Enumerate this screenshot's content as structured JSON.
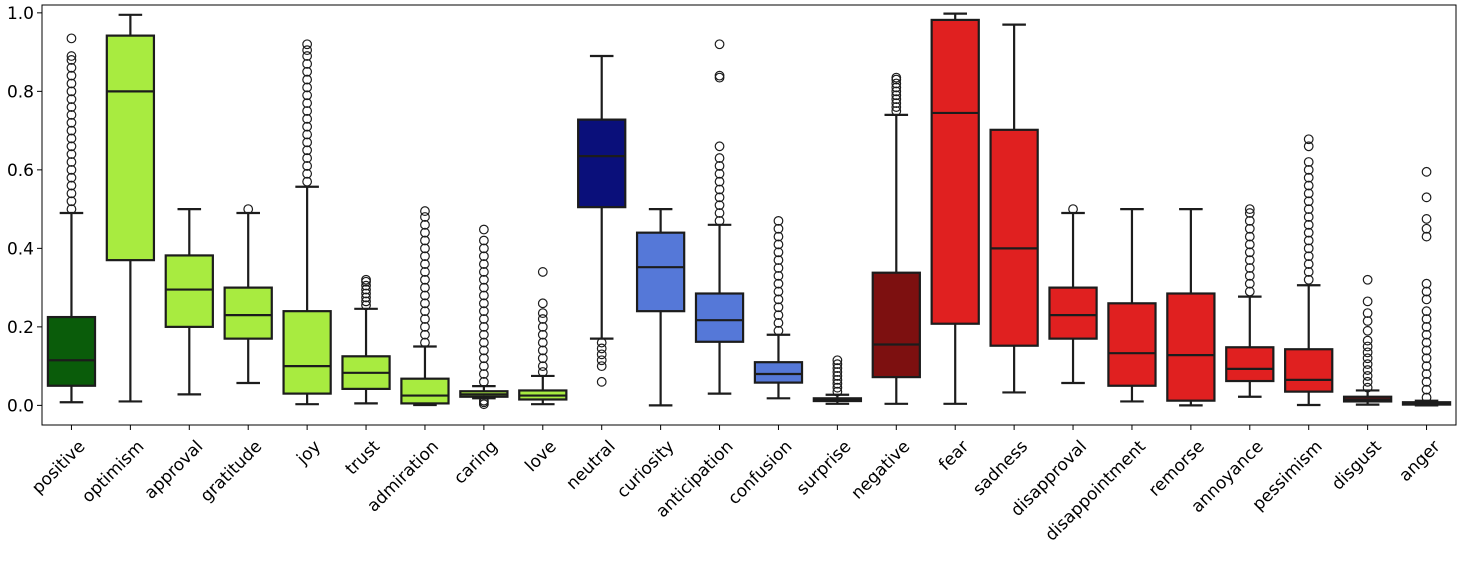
{
  "chart_data": {
    "type": "box",
    "title": "",
    "xlabel": "",
    "ylabel": "",
    "ylim": [
      -0.05,
      1.02
    ],
    "y_ticks": [
      {
        "value": 0.0,
        "label": "0.0"
      },
      {
        "value": 0.2,
        "label": "0.2"
      },
      {
        "value": 0.4,
        "label": "0.4"
      },
      {
        "value": 0.6,
        "label": "0.6"
      },
      {
        "value": 0.8,
        "label": "0.8"
      },
      {
        "value": 1.0,
        "label": "1.0"
      }
    ],
    "grid": false,
    "series": [
      {
        "name": "positive",
        "color": "#0a5c0a",
        "q1": 0.05,
        "median": 0.115,
        "q3": 0.225,
        "whisker_low": 0.008,
        "whisker_high": 0.49,
        "outliers": [
          0.5,
          0.52,
          0.54,
          0.56,
          0.58,
          0.6,
          0.62,
          0.64,
          0.66,
          0.68,
          0.7,
          0.72,
          0.74,
          0.76,
          0.78,
          0.8,
          0.82,
          0.84,
          0.86,
          0.88,
          0.89,
          0.935
        ]
      },
      {
        "name": "optimism",
        "color": "#a8eb40",
        "q1": 0.37,
        "median": 0.8,
        "q3": 0.942,
        "whisker_low": 0.01,
        "whisker_high": 0.995,
        "outliers": []
      },
      {
        "name": "approval",
        "color": "#a8eb40",
        "q1": 0.2,
        "median": 0.295,
        "q3": 0.382,
        "whisker_low": 0.028,
        "whisker_high": 0.5,
        "outliers": []
      },
      {
        "name": "gratitude",
        "color": "#a8eb40",
        "q1": 0.17,
        "median": 0.23,
        "q3": 0.3,
        "whisker_low": 0.057,
        "whisker_high": 0.49,
        "outliers": [
          0.5
        ]
      },
      {
        "name": "joy",
        "color": "#a8eb40",
        "q1": 0.03,
        "median": 0.1,
        "q3": 0.24,
        "whisker_low": 0.003,
        "whisker_high": 0.557,
        "outliers": [
          0.57,
          0.59,
          0.61,
          0.63,
          0.65,
          0.67,
          0.69,
          0.71,
          0.73,
          0.75,
          0.77,
          0.79,
          0.81,
          0.83,
          0.85,
          0.87,
          0.89,
          0.905,
          0.92
        ]
      },
      {
        "name": "trust",
        "color": "#a8eb40",
        "q1": 0.042,
        "median": 0.083,
        "q3": 0.125,
        "whisker_low": 0.005,
        "whisker_high": 0.246,
        "outliers": [
          0.255,
          0.265,
          0.275,
          0.285,
          0.295,
          0.305,
          0.315,
          0.32
        ]
      },
      {
        "name": "admiration",
        "color": "#a8eb40",
        "q1": 0.005,
        "median": 0.025,
        "q3": 0.068,
        "whisker_low": 0.001,
        "whisker_high": 0.15,
        "outliers": [
          0.16,
          0.18,
          0.2,
          0.22,
          0.24,
          0.26,
          0.28,
          0.3,
          0.32,
          0.34,
          0.36,
          0.38,
          0.4,
          0.42,
          0.44,
          0.46,
          0.48,
          0.495
        ]
      },
      {
        "name": "caring",
        "color": "#a8eb40",
        "q1": 0.022,
        "median": 0.028,
        "q3": 0.036,
        "whisker_low": 0.018,
        "whisker_high": 0.049,
        "outliers": [
          0.003,
          0.008,
          0.012,
          0.06,
          0.08,
          0.1,
          0.12,
          0.14,
          0.16,
          0.18,
          0.2,
          0.22,
          0.24,
          0.26,
          0.28,
          0.3,
          0.32,
          0.34,
          0.36,
          0.38,
          0.4,
          0.42,
          0.448
        ]
      },
      {
        "name": "love",
        "color": "#a8eb40",
        "q1": 0.015,
        "median": 0.025,
        "q3": 0.038,
        "whisker_low": 0.003,
        "whisker_high": 0.075,
        "outliers": [
          0.085,
          0.1,
          0.12,
          0.14,
          0.16,
          0.18,
          0.2,
          0.22,
          0.235,
          0.26,
          0.34
        ]
      },
      {
        "name": "neutral",
        "color": "#0a0f7a",
        "q1": 0.505,
        "median": 0.635,
        "q3": 0.728,
        "whisker_low": 0.17,
        "whisker_high": 0.89,
        "outliers": [
          0.06,
          0.1,
          0.115,
          0.13,
          0.145,
          0.16
        ]
      },
      {
        "name": "curiosity",
        "color": "#5578d8",
        "q1": 0.24,
        "median": 0.352,
        "q3": 0.44,
        "whisker_low": 0.0,
        "whisker_high": 0.5,
        "outliers": []
      },
      {
        "name": "anticipation",
        "color": "#5578d8",
        "q1": 0.162,
        "median": 0.217,
        "q3": 0.285,
        "whisker_low": 0.03,
        "whisker_high": 0.46,
        "outliers": [
          0.47,
          0.49,
          0.51,
          0.53,
          0.55,
          0.57,
          0.59,
          0.61,
          0.63,
          0.66,
          0.835,
          0.84,
          0.92
        ]
      },
      {
        "name": "confusion",
        "color": "#5578d8",
        "q1": 0.058,
        "median": 0.08,
        "q3": 0.11,
        "whisker_low": 0.018,
        "whisker_high": 0.18,
        "outliers": [
          0.19,
          0.21,
          0.23,
          0.25,
          0.27,
          0.29,
          0.31,
          0.33,
          0.35,
          0.37,
          0.39,
          0.41,
          0.43,
          0.45,
          0.47
        ]
      },
      {
        "name": "surprise",
        "color": "#5578d8",
        "q1": 0.011,
        "median": 0.014,
        "q3": 0.018,
        "whisker_low": 0.004,
        "whisker_high": 0.027,
        "outliers": [
          0.035,
          0.045,
          0.055,
          0.065,
          0.075,
          0.085,
          0.095,
          0.105,
          0.115
        ]
      },
      {
        "name": "negative",
        "color": "#7d1010",
        "q1": 0.072,
        "median": 0.155,
        "q3": 0.338,
        "whisker_low": 0.004,
        "whisker_high": 0.74,
        "outliers": [
          0.75,
          0.76,
          0.77,
          0.78,
          0.79,
          0.8,
          0.81,
          0.82,
          0.83,
          0.835
        ]
      },
      {
        "name": "fear",
        "color": "#e02020",
        "q1": 0.208,
        "median": 0.745,
        "q3": 0.982,
        "whisker_low": 0.004,
        "whisker_high": 0.998,
        "outliers": []
      },
      {
        "name": "sadness",
        "color": "#e02020",
        "q1": 0.152,
        "median": 0.4,
        "q3": 0.702,
        "whisker_low": 0.033,
        "whisker_high": 0.97,
        "outliers": []
      },
      {
        "name": "disapproval",
        "color": "#e02020",
        "q1": 0.17,
        "median": 0.23,
        "q3": 0.3,
        "whisker_low": 0.057,
        "whisker_high": 0.49,
        "outliers": [
          0.5
        ]
      },
      {
        "name": "disappointment",
        "color": "#e02020",
        "q1": 0.05,
        "median": 0.133,
        "q3": 0.26,
        "whisker_low": 0.01,
        "whisker_high": 0.5,
        "outliers": []
      },
      {
        "name": "remorse",
        "color": "#e02020",
        "q1": 0.012,
        "median": 0.128,
        "q3": 0.285,
        "whisker_low": 0.0,
        "whisker_high": 0.5,
        "outliers": []
      },
      {
        "name": "annoyance",
        "color": "#e02020",
        "q1": 0.062,
        "median": 0.093,
        "q3": 0.148,
        "whisker_low": 0.022,
        "whisker_high": 0.277,
        "outliers": [
          0.29,
          0.31,
          0.33,
          0.35,
          0.37,
          0.39,
          0.41,
          0.43,
          0.45,
          0.47,
          0.49,
          0.5
        ]
      },
      {
        "name": "pessimism",
        "color": "#e02020",
        "q1": 0.035,
        "median": 0.065,
        "q3": 0.143,
        "whisker_low": 0.001,
        "whisker_high": 0.306,
        "outliers": [
          0.32,
          0.34,
          0.36,
          0.38,
          0.4,
          0.42,
          0.44,
          0.46,
          0.48,
          0.5,
          0.52,
          0.54,
          0.56,
          0.58,
          0.6,
          0.62,
          0.66,
          0.678
        ]
      },
      {
        "name": "disgust",
        "color": "#7d1010",
        "q1": 0.01,
        "median": 0.015,
        "q3": 0.022,
        "whisker_low": 0.002,
        "whisker_high": 0.038,
        "outliers": [
          0.045,
          0.06,
          0.075,
          0.09,
          0.105,
          0.12,
          0.135,
          0.15,
          0.165,
          0.19,
          0.215,
          0.235,
          0.265,
          0.32
        ]
      },
      {
        "name": "anger",
        "color": "#e02020",
        "q1": 0.002,
        "median": 0.004,
        "q3": 0.008,
        "whisker_low": 0.0,
        "whisker_high": 0.012,
        "outliers": [
          0.02,
          0.04,
          0.06,
          0.08,
          0.1,
          0.12,
          0.14,
          0.16,
          0.18,
          0.2,
          0.22,
          0.24,
          0.27,
          0.29,
          0.31,
          0.43,
          0.45,
          0.475,
          0.53,
          0.595
        ]
      }
    ]
  }
}
